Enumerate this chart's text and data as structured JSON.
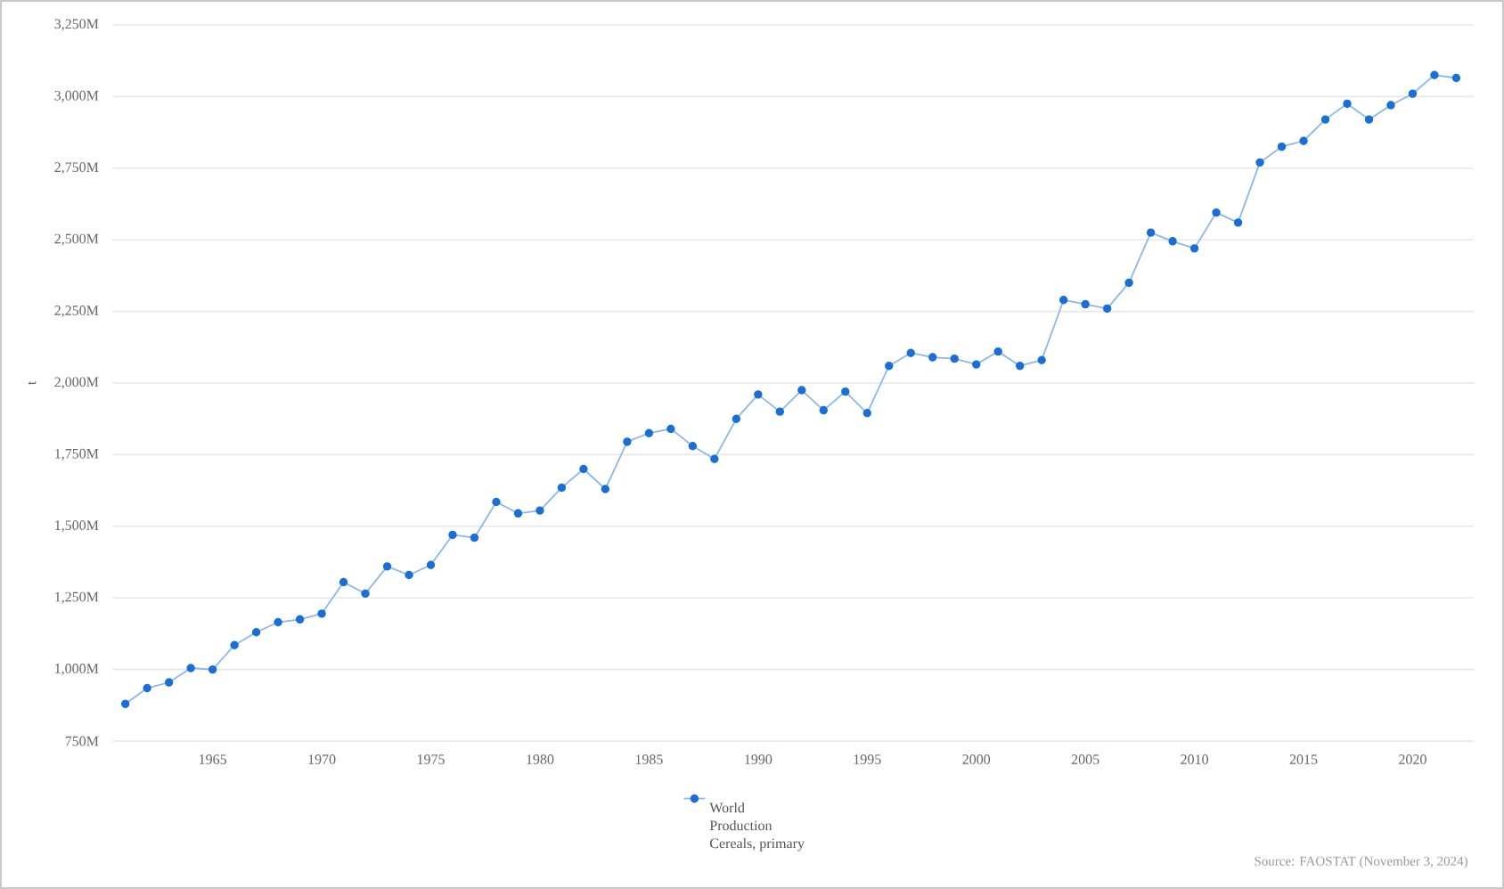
{
  "chart_data": {
    "type": "line",
    "ylabel": "t",
    "x": [
      1961,
      1962,
      1963,
      1964,
      1965,
      1966,
      1967,
      1968,
      1969,
      1970,
      1971,
      1972,
      1973,
      1974,
      1975,
      1976,
      1977,
      1978,
      1979,
      1980,
      1981,
      1982,
      1983,
      1984,
      1985,
      1986,
      1987,
      1988,
      1989,
      1990,
      1991,
      1992,
      1993,
      1994,
      1995,
      1996,
      1997,
      1998,
      1999,
      2000,
      2001,
      2002,
      2003,
      2004,
      2005,
      2006,
      2007,
      2008,
      2009,
      2010,
      2011,
      2012,
      2013,
      2014,
      2015,
      2016,
      2017,
      2018,
      2019,
      2020,
      2021,
      2022
    ],
    "xlim": [
      1960.4,
      2022.8
    ],
    "xticks": [
      1965,
      1970,
      1975,
      1980,
      1985,
      1990,
      1995,
      2000,
      2005,
      2010,
      2015,
      2020
    ],
    "ylim": [
      750,
      3250
    ],
    "yticks": [
      {
        "value": 750,
        "label": "750M"
      },
      {
        "value": 1000,
        "label": "1,000M"
      },
      {
        "value": 1250,
        "label": "1,250M"
      },
      {
        "value": 1500,
        "label": "1,500M"
      },
      {
        "value": 1750,
        "label": "1,750M"
      },
      {
        "value": 2000,
        "label": "2,000M"
      },
      {
        "value": 2250,
        "label": "2,250M"
      },
      {
        "value": 2500,
        "label": "2,500M"
      },
      {
        "value": 2750,
        "label": "2,750M"
      },
      {
        "value": 3000,
        "label": "3,000M"
      },
      {
        "value": 3250,
        "label": "3,250M"
      }
    ],
    "series": [
      {
        "name": "World Production Cereals, primary",
        "color": "#1a6fd6",
        "values": [
          880,
          935,
          955,
          1005,
          1000,
          1085,
          1130,
          1165,
          1175,
          1195,
          1305,
          1265,
          1360,
          1330,
          1365,
          1470,
          1460,
          1585,
          1545,
          1555,
          1635,
          1700,
          1630,
          1795,
          1825,
          1840,
          1780,
          1735,
          1875,
          1960,
          1900,
          1975,
          1905,
          1970,
          1895,
          2060,
          2105,
          2090,
          2085,
          2065,
          2110,
          2060,
          2080,
          2290,
          2275,
          2260,
          2350,
          2525,
          2495,
          2470,
          2595,
          2560,
          2770,
          2825,
          2845,
          2920,
          2975,
          2920,
          2970,
          3010,
          3075,
          3065
        ]
      }
    ],
    "marker": "circle",
    "line_style": "solid",
    "grid": "y",
    "legend": "bottom",
    "annotations": [
      "Source: FAOSTAT (November 3, 2024)"
    ]
  }
}
